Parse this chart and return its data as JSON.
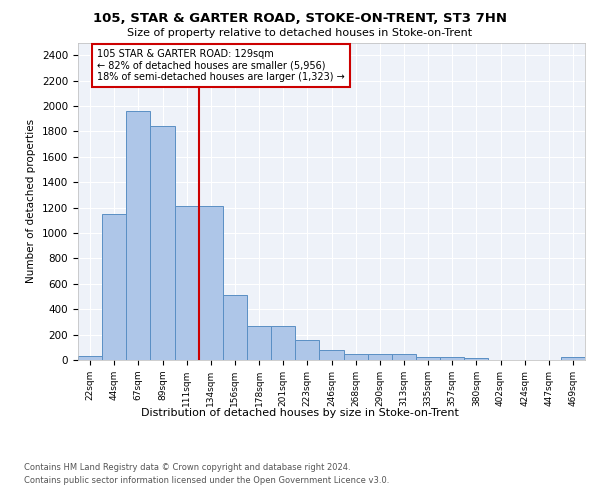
{
  "title": "105, STAR & GARTER ROAD, STOKE-ON-TRENT, ST3 7HN",
  "subtitle": "Size of property relative to detached houses in Stoke-on-Trent",
  "xlabel": "Distribution of detached houses by size in Stoke-on-Trent",
  "ylabel": "Number of detached properties",
  "categories": [
    "22sqm",
    "44sqm",
    "67sqm",
    "89sqm",
    "111sqm",
    "134sqm",
    "156sqm",
    "178sqm",
    "201sqm",
    "223sqm",
    "246sqm",
    "268sqm",
    "290sqm",
    "313sqm",
    "335sqm",
    "357sqm",
    "380sqm",
    "402sqm",
    "424sqm",
    "447sqm",
    "469sqm"
  ],
  "values": [
    30,
    1150,
    1960,
    1840,
    1215,
    1215,
    510,
    265,
    265,
    155,
    80,
    50,
    45,
    45,
    20,
    20,
    15,
    0,
    0,
    0,
    20
  ],
  "bar_color": "#aec6e8",
  "bar_edge_color": "#5a8fc4",
  "vline_x_index": 5,
  "vline_color": "#cc0000",
  "annotation_text": "105 STAR & GARTER ROAD: 129sqm\n← 82% of detached houses are smaller (5,956)\n18% of semi-detached houses are larger (1,323) →",
  "annotation_box_color": "#cc0000",
  "ylim": [
    0,
    2500
  ],
  "yticks": [
    0,
    200,
    400,
    600,
    800,
    1000,
    1200,
    1400,
    1600,
    1800,
    2000,
    2200,
    2400
  ],
  "footer_line1": "Contains HM Land Registry data © Crown copyright and database right 2024.",
  "footer_line2": "Contains public sector information licensed under the Open Government Licence v3.0.",
  "bg_color": "#eef2f9",
  "grid_color": "#ffffff"
}
